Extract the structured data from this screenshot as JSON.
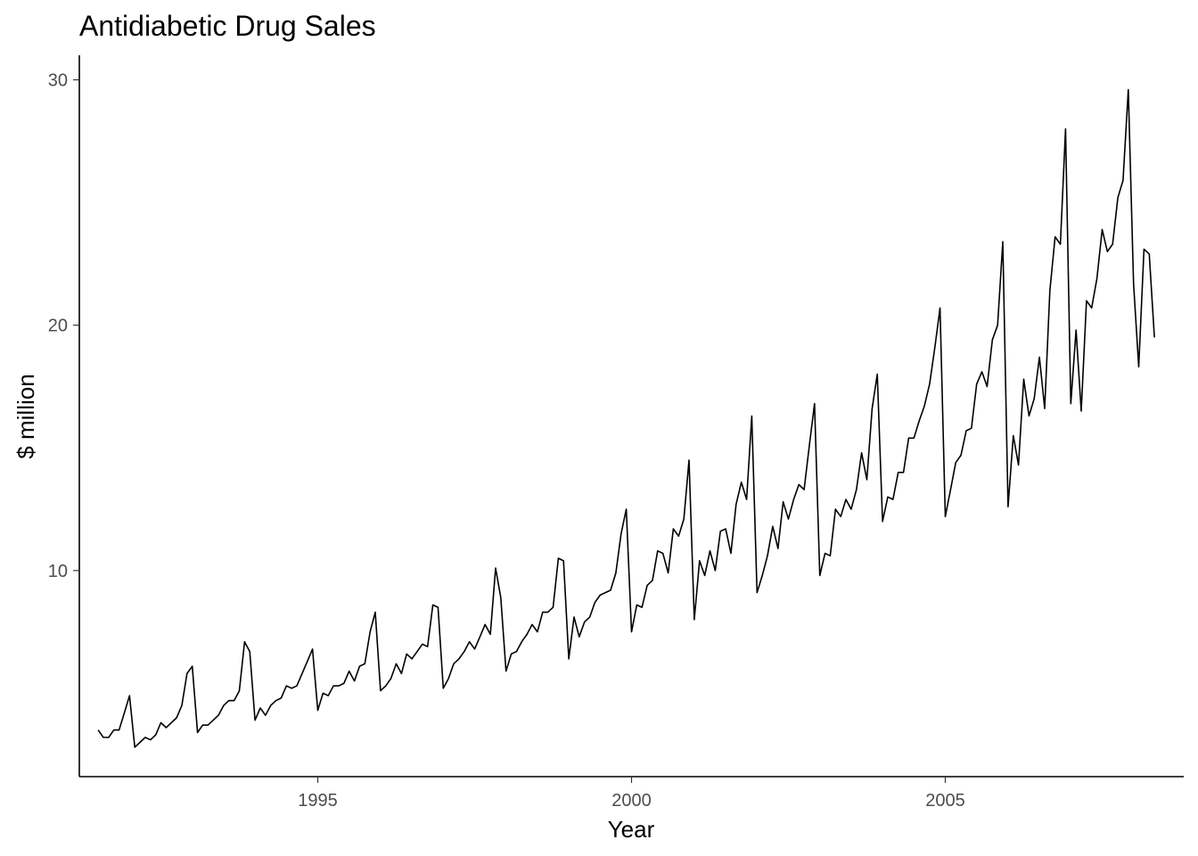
{
  "chart_data": {
    "type": "line",
    "title": "Antidiabetic Drug Sales",
    "xlabel": "Year",
    "ylabel": "$ million",
    "xlim": [
      1991.2,
      2008.8
    ],
    "ylim": [
      1.6,
      31.0
    ],
    "grid": false,
    "x_ticks": [
      {
        "value": 1995,
        "label": "1995"
      },
      {
        "value": 2000,
        "label": "2000"
      },
      {
        "value": 2005,
        "label": "2005"
      }
    ],
    "y_ticks": [
      {
        "value": 10,
        "label": "10"
      },
      {
        "value": 20,
        "label": "20"
      },
      {
        "value": 30,
        "label": "30"
      }
    ],
    "series": [
      {
        "color": "#000000",
        "start_year": 1991,
        "start_month": 7,
        "values": [
          3.5,
          3.2,
          3.2,
          3.5,
          3.5,
          4.2,
          4.9,
          2.8,
          3.0,
          3.2,
          3.1,
          3.3,
          3.8,
          3.6,
          3.8,
          4.0,
          4.5,
          5.8,
          6.1,
          3.4,
          3.7,
          3.7,
          3.9,
          4.1,
          4.5,
          4.7,
          4.7,
          5.1,
          7.1,
          6.7,
          3.9,
          4.4,
          4.1,
          4.5,
          4.7,
          4.8,
          5.3,
          5.2,
          5.3,
          5.8,
          6.3,
          6.8,
          4.3,
          5.0,
          4.9,
          5.3,
          5.3,
          5.4,
          5.9,
          5.5,
          6.1,
          6.2,
          7.5,
          8.3,
          5.1,
          5.3,
          5.6,
          6.2,
          5.8,
          6.6,
          6.4,
          6.7,
          7.0,
          6.9,
          8.6,
          8.5,
          5.2,
          5.6,
          6.2,
          6.4,
          6.7,
          7.1,
          6.8,
          7.3,
          7.8,
          7.4,
          10.1,
          8.9,
          5.9,
          6.6,
          6.7,
          7.1,
          7.4,
          7.8,
          7.5,
          8.3,
          8.3,
          8.5,
          10.5,
          10.4,
          6.4,
          8.1,
          7.3,
          7.9,
          8.1,
          8.7,
          9.0,
          9.1,
          9.2,
          9.9,
          11.5,
          12.5,
          7.5,
          8.6,
          8.5,
          9.4,
          9.6,
          10.8,
          10.7,
          9.9,
          11.7,
          11.4,
          12.1,
          14.5,
          8.0,
          10.4,
          9.8,
          10.8,
          10.0,
          11.6,
          11.7,
          10.7,
          12.7,
          13.6,
          12.9,
          16.3,
          9.1,
          9.8,
          10.6,
          11.8,
          10.9,
          12.8,
          12.1,
          12.9,
          13.5,
          13.3,
          15.1,
          16.8,
          9.8,
          10.7,
          10.6,
          12.5,
          12.2,
          12.9,
          12.5,
          13.3,
          14.8,
          13.7,
          16.6,
          18.0,
          12.0,
          13.0,
          12.9,
          14.0,
          14.0,
          15.4,
          15.4,
          16.1,
          16.7,
          17.6,
          19.1,
          20.7,
          12.2,
          13.3,
          14.4,
          14.7,
          15.7,
          15.8,
          17.6,
          18.1,
          17.5,
          19.4,
          20.0,
          23.4,
          12.6,
          15.5,
          14.3,
          17.8,
          16.3,
          17.0,
          18.7,
          16.6,
          21.4,
          23.6,
          23.3,
          28.0,
          16.8,
          19.8,
          16.5,
          21.0,
          20.7,
          21.9,
          23.9,
          23.0,
          23.3,
          25.2,
          25.9,
          29.6,
          21.7,
          18.3,
          23.1,
          22.9,
          19.5
        ]
      }
    ]
  }
}
